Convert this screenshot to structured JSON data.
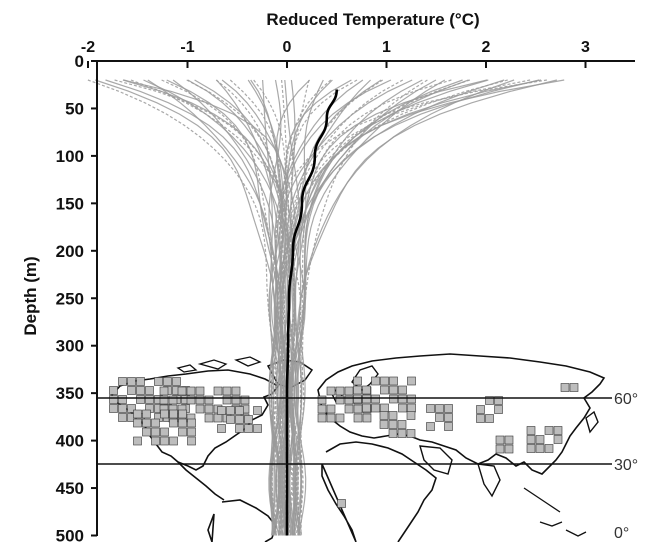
{
  "chart_data": {
    "type": "line",
    "title": "Reduced Temperature (°C)",
    "xlabel": "Reduced Temperature (°C)",
    "ylabel": "Depth (m)",
    "x_axis_position": "top",
    "y_inverted": true,
    "xlim": [
      -2,
      3.5
    ],
    "ylim": [
      0,
      500
    ],
    "x_ticks": [
      {
        "value": -2,
        "label": "-2"
      },
      {
        "value": -1,
        "label": "-1"
      },
      {
        "value": 0,
        "label": "0"
      },
      {
        "value": 1,
        "label": "1"
      },
      {
        "value": 2,
        "label": "2"
      },
      {
        "value": 3,
        "label": "3"
      }
    ],
    "y_ticks": [
      {
        "value": 0,
        "label": "0"
      },
      {
        "value": 50,
        "label": "50"
      },
      {
        "value": 100,
        "label": "100"
      },
      {
        "value": 150,
        "label": "150"
      },
      {
        "value": 200,
        "label": "200"
      },
      {
        "value": 250,
        "label": "250"
      },
      {
        "value": 300,
        "label": "300"
      },
      {
        "value": 350,
        "label": "350"
      },
      {
        "value": 400,
        "label": "400"
      },
      {
        "value": 450,
        "label": "450"
      },
      {
        "value": 500,
        "label": "500"
      }
    ],
    "grid": false,
    "mean_profile": {
      "color": "#000000",
      "points": [
        {
          "x": 0.5,
          "y": 30
        },
        {
          "x": 0.4,
          "y": 60
        },
        {
          "x": 0.28,
          "y": 100
        },
        {
          "x": 0.15,
          "y": 150
        },
        {
          "x": 0.06,
          "y": 200
        },
        {
          "x": 0.02,
          "y": 250
        },
        {
          "x": 0.01,
          "y": 300
        },
        {
          "x": 0.0,
          "y": 350
        },
        {
          "x": 0.0,
          "y": 400
        },
        {
          "x": 0.0,
          "y": 450
        },
        {
          "x": 0.0,
          "y": 500
        }
      ]
    },
    "envelope": {
      "color": "#9a9a9a",
      "top_depth": 20,
      "top_left": -2.0,
      "top_right": 2.8,
      "profile_count": 60
    },
    "latitude_lines": [
      {
        "label": "60°",
        "lat": 60
      },
      {
        "label": "30°",
        "lat": 30
      },
      {
        "label": "0°",
        "lat": 0
      }
    ],
    "inset_map": {
      "content": "world map showing borehole site locations in North America, Europe and Asia",
      "cell_color": "#bdbdbd"
    }
  }
}
